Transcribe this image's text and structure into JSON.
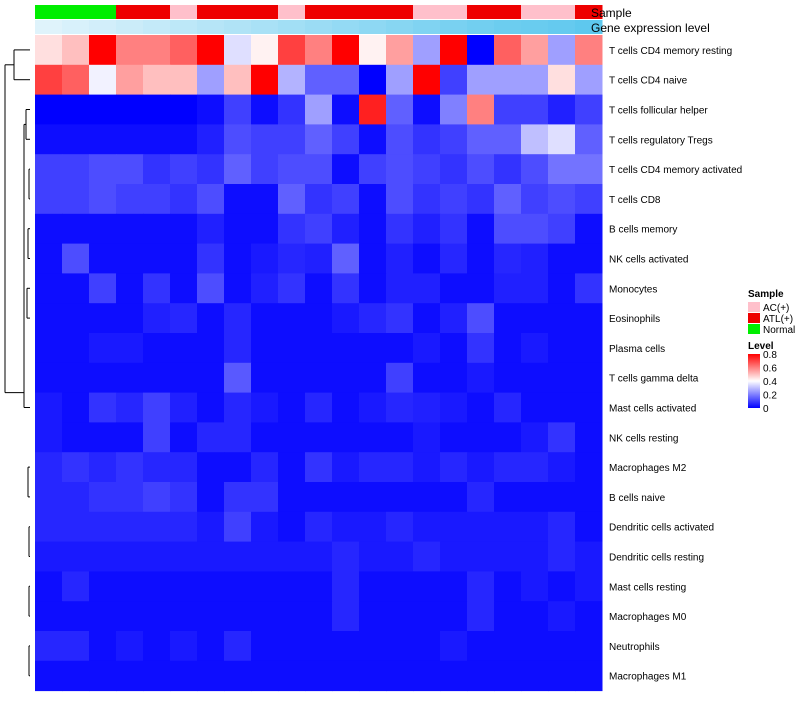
{
  "chart_data": {
    "type": "heatmap",
    "annotation_labels": [
      "Sample",
      "Gene expression level"
    ],
    "sample_groups": [
      "Normal",
      "Normal",
      "Normal",
      "ATL(+)",
      "ATL(+)",
      "AC(+)",
      "ATL(+)",
      "ATL(+)",
      "ATL(+)",
      "AC(+)",
      "ATL(+)",
      "ATL(+)",
      "ATL(+)",
      "ATL(+)",
      "AC(+)",
      "AC(+)",
      "ATL(+)",
      "ATL(+)",
      "AC(+)",
      "AC(+)",
      "ATL(+)"
    ],
    "gene_expression_level": [
      0.05,
      0.1,
      0.15,
      0.2,
      0.25,
      0.3,
      0.35,
      0.4,
      0.45,
      0.5,
      0.55,
      0.6,
      0.65,
      0.7,
      0.75,
      0.8,
      0.85,
      0.9,
      0.92,
      0.95,
      1.0
    ],
    "rows": [
      "T cells CD4 memory resting",
      "T cells CD4 naive",
      "T cells follicular helper",
      "T cells regulatory  Tregs",
      "T cells CD4 memory activated",
      "T cells CD8",
      "B cells memory",
      "NK cells activated",
      "Monocytes",
      "Eosinophils",
      "Plasma cells",
      "T cells gamma delta",
      "Mast cells activated",
      "NK cells resting",
      "Macrophages M2",
      "B cells naive",
      "Dendritic cells activated",
      "Dendritic cells resting",
      "Mast cells resting",
      "Macrophages M0",
      "Neutrophils",
      "Macrophages M1"
    ],
    "values": [
      [
        0.45,
        0.5,
        0.8,
        0.6,
        0.6,
        0.65,
        0.8,
        0.35,
        0.42,
        0.7,
        0.6,
        0.8,
        0.42,
        0.55,
        0.25,
        0.8,
        0.0,
        0.65,
        0.55,
        0.25,
        0.6
      ],
      [
        0.7,
        0.65,
        0.38,
        0.55,
        0.5,
        0.5,
        0.25,
        0.5,
        0.8,
        0.28,
        0.15,
        0.15,
        0.0,
        0.25,
        0.8,
        0.1,
        0.25,
        0.25,
        0.25,
        0.45,
        0.25
      ],
      [
        0.0,
        0.0,
        0.0,
        0.0,
        0.0,
        0.0,
        0.02,
        0.1,
        0.02,
        0.08,
        0.25,
        0.02,
        0.75,
        0.15,
        0.02,
        0.2,
        0.6,
        0.1,
        0.1,
        0.05,
        0.1
      ],
      [
        0.02,
        0.02,
        0.02,
        0.02,
        0.02,
        0.02,
        0.05,
        0.12,
        0.1,
        0.1,
        0.15,
        0.1,
        0.02,
        0.12,
        0.08,
        0.1,
        0.15,
        0.15,
        0.3,
        0.35,
        0.15
      ],
      [
        0.1,
        0.1,
        0.12,
        0.12,
        0.08,
        0.1,
        0.08,
        0.15,
        0.1,
        0.12,
        0.12,
        0.02,
        0.1,
        0.12,
        0.1,
        0.08,
        0.12,
        0.08,
        0.12,
        0.18,
        0.18
      ],
      [
        0.1,
        0.1,
        0.12,
        0.1,
        0.1,
        0.08,
        0.12,
        0.02,
        0.02,
        0.15,
        0.08,
        0.1,
        0.02,
        0.12,
        0.08,
        0.1,
        0.08,
        0.15,
        0.1,
        0.12,
        0.1
      ],
      [
        0.02,
        0.02,
        0.02,
        0.02,
        0.02,
        0.02,
        0.05,
        0.02,
        0.02,
        0.08,
        0.1,
        0.05,
        0.02,
        0.08,
        0.05,
        0.08,
        0.02,
        0.12,
        0.12,
        0.1,
        0.02
      ],
      [
        0.02,
        0.12,
        0.02,
        0.02,
        0.02,
        0.02,
        0.08,
        0.02,
        0.04,
        0.06,
        0.05,
        0.15,
        0.02,
        0.05,
        0.02,
        0.06,
        0.02,
        0.06,
        0.05,
        0.02,
        0.02
      ],
      [
        0.02,
        0.02,
        0.1,
        0.02,
        0.08,
        0.02,
        0.12,
        0.02,
        0.05,
        0.08,
        0.02,
        0.08,
        0.02,
        0.05,
        0.05,
        0.02,
        0.02,
        0.05,
        0.05,
        0.02,
        0.08
      ],
      [
        0.02,
        0.02,
        0.02,
        0.02,
        0.05,
        0.06,
        0.02,
        0.06,
        0.02,
        0.02,
        0.02,
        0.04,
        0.06,
        0.08,
        0.02,
        0.05,
        0.12,
        0.02,
        0.02,
        0.02,
        0.02
      ],
      [
        0.02,
        0.02,
        0.04,
        0.04,
        0.02,
        0.02,
        0.02,
        0.06,
        0.02,
        0.02,
        0.02,
        0.02,
        0.02,
        0.02,
        0.04,
        0.02,
        0.08,
        0.02,
        0.04,
        0.02,
        0.02
      ],
      [
        0.02,
        0.02,
        0.02,
        0.02,
        0.02,
        0.02,
        0.02,
        0.14,
        0.02,
        0.02,
        0.02,
        0.02,
        0.02,
        0.1,
        0.02,
        0.02,
        0.04,
        0.02,
        0.02,
        0.02,
        0.02
      ],
      [
        0.04,
        0.02,
        0.08,
        0.06,
        0.1,
        0.05,
        0.02,
        0.06,
        0.04,
        0.02,
        0.06,
        0.02,
        0.04,
        0.06,
        0.05,
        0.04,
        0.02,
        0.06,
        0.02,
        0.02,
        0.02
      ],
      [
        0.04,
        0.02,
        0.02,
        0.02,
        0.1,
        0.02,
        0.06,
        0.06,
        0.02,
        0.02,
        0.02,
        0.02,
        0.02,
        0.02,
        0.04,
        0.02,
        0.02,
        0.02,
        0.04,
        0.08,
        0.02
      ],
      [
        0.06,
        0.08,
        0.06,
        0.08,
        0.06,
        0.06,
        0.02,
        0.02,
        0.06,
        0.02,
        0.08,
        0.04,
        0.06,
        0.06,
        0.04,
        0.06,
        0.04,
        0.06,
        0.06,
        0.04,
        0.02
      ],
      [
        0.06,
        0.06,
        0.08,
        0.08,
        0.1,
        0.08,
        0.02,
        0.08,
        0.08,
        0.02,
        0.02,
        0.02,
        0.02,
        0.02,
        0.02,
        0.02,
        0.06,
        0.02,
        0.02,
        0.02,
        0.02
      ],
      [
        0.06,
        0.06,
        0.06,
        0.06,
        0.06,
        0.06,
        0.04,
        0.1,
        0.04,
        0.02,
        0.06,
        0.04,
        0.04,
        0.06,
        0.04,
        0.04,
        0.04,
        0.04,
        0.04,
        0.06,
        0.02
      ],
      [
        0.04,
        0.04,
        0.04,
        0.04,
        0.04,
        0.04,
        0.04,
        0.04,
        0.04,
        0.04,
        0.04,
        0.06,
        0.04,
        0.04,
        0.06,
        0.04,
        0.04,
        0.04,
        0.04,
        0.06,
        0.04
      ],
      [
        0.02,
        0.06,
        0.02,
        0.02,
        0.02,
        0.02,
        0.02,
        0.02,
        0.02,
        0.02,
        0.02,
        0.06,
        0.02,
        0.02,
        0.02,
        0.02,
        0.06,
        0.02,
        0.04,
        0.02,
        0.04
      ],
      [
        0.02,
        0.02,
        0.02,
        0.02,
        0.02,
        0.02,
        0.02,
        0.02,
        0.02,
        0.02,
        0.02,
        0.06,
        0.02,
        0.02,
        0.02,
        0.02,
        0.06,
        0.02,
        0.02,
        0.04,
        0.02
      ],
      [
        0.06,
        0.06,
        0.02,
        0.04,
        0.02,
        0.04,
        0.02,
        0.06,
        0.02,
        0.02,
        0.02,
        0.02,
        0.02,
        0.02,
        0.02,
        0.04,
        0.02,
        0.02,
        0.02,
        0.02,
        0.02
      ],
      [
        0.02,
        0.02,
        0.02,
        0.02,
        0.02,
        0.02,
        0.02,
        0.02,
        0.02,
        0.02,
        0.02,
        0.02,
        0.02,
        0.02,
        0.02,
        0.02,
        0.02,
        0.02,
        0.02,
        0.02,
        0.02
      ]
    ],
    "legend": {
      "sample": {
        "title": "Sample",
        "entries": [
          {
            "label": "AC(+)",
            "color": "#ffc0cb"
          },
          {
            "label": "ATL(+)",
            "color": "#ee0000"
          },
          {
            "label": "Normal",
            "color": "#00ee00"
          }
        ]
      },
      "level": {
        "title": "Level",
        "ticks": [
          "0.8",
          "0.6",
          "0.4",
          "0.2",
          "0"
        ],
        "tick_values": [
          0.8,
          0.6,
          0.4,
          0.2,
          0
        ],
        "range": [
          0,
          0.8
        ]
      }
    },
    "colors": {
      "low": "#0000ff",
      "mid": "#ffffff",
      "high": "#ff0000",
      "expression_low": "#e6f5fc",
      "expression_high": "#5ec8ee"
    }
  }
}
